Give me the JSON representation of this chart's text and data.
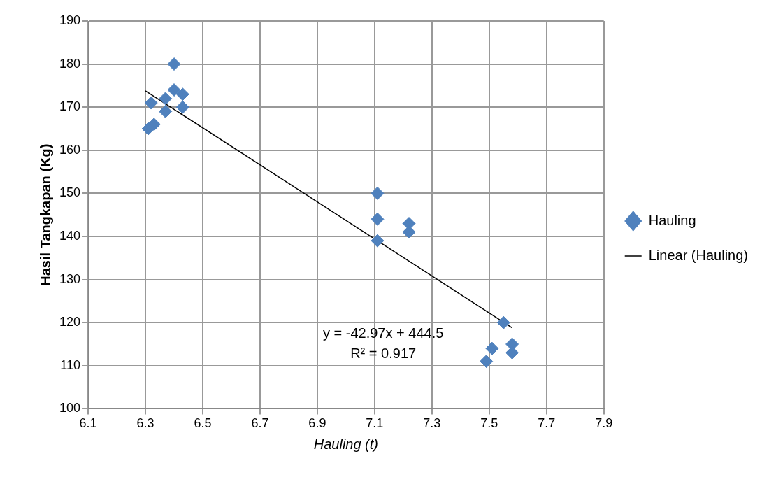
{
  "chart_data": {
    "type": "scatter",
    "xlabel": "Hauling (t)",
    "ylabel": "Hasil Tangkapan (Kg)",
    "xlim": [
      6.1,
      7.9
    ],
    "xticks": [
      6.1,
      6.3,
      6.5,
      6.7,
      6.9,
      7.1,
      7.3,
      7.5,
      7.7,
      7.9
    ],
    "ylim": [
      100,
      190
    ],
    "yticks": [
      100,
      110,
      120,
      130,
      140,
      150,
      160,
      170,
      180,
      190
    ],
    "grid": true,
    "legend": "right",
    "marker": "diamond",
    "series": [
      {
        "name": "Hauling",
        "color": "#4f81bd",
        "x": [
          6.4,
          6.4,
          6.43,
          6.43,
          6.37,
          6.32,
          6.37,
          6.33,
          6.31,
          7.11,
          7.11,
          7.11,
          7.22,
          7.22,
          7.55,
          7.58,
          7.58,
          7.51,
          7.49
        ],
        "values": [
          180,
          174,
          173,
          170,
          172,
          171,
          169,
          166,
          165,
          150,
          144,
          139,
          143,
          141,
          120,
          115,
          113,
          114,
          111
        ]
      },
      {
        "name": "Linear (Hauling)",
        "type": "line",
        "color": "#000000",
        "marker": "none",
        "x": [
          6.3,
          7.58
        ],
        "values": [
          173.8,
          118.8
        ]
      }
    ],
    "annotations": [
      "y = -42.97x + 444.5",
      "R² = 0.917"
    ]
  }
}
